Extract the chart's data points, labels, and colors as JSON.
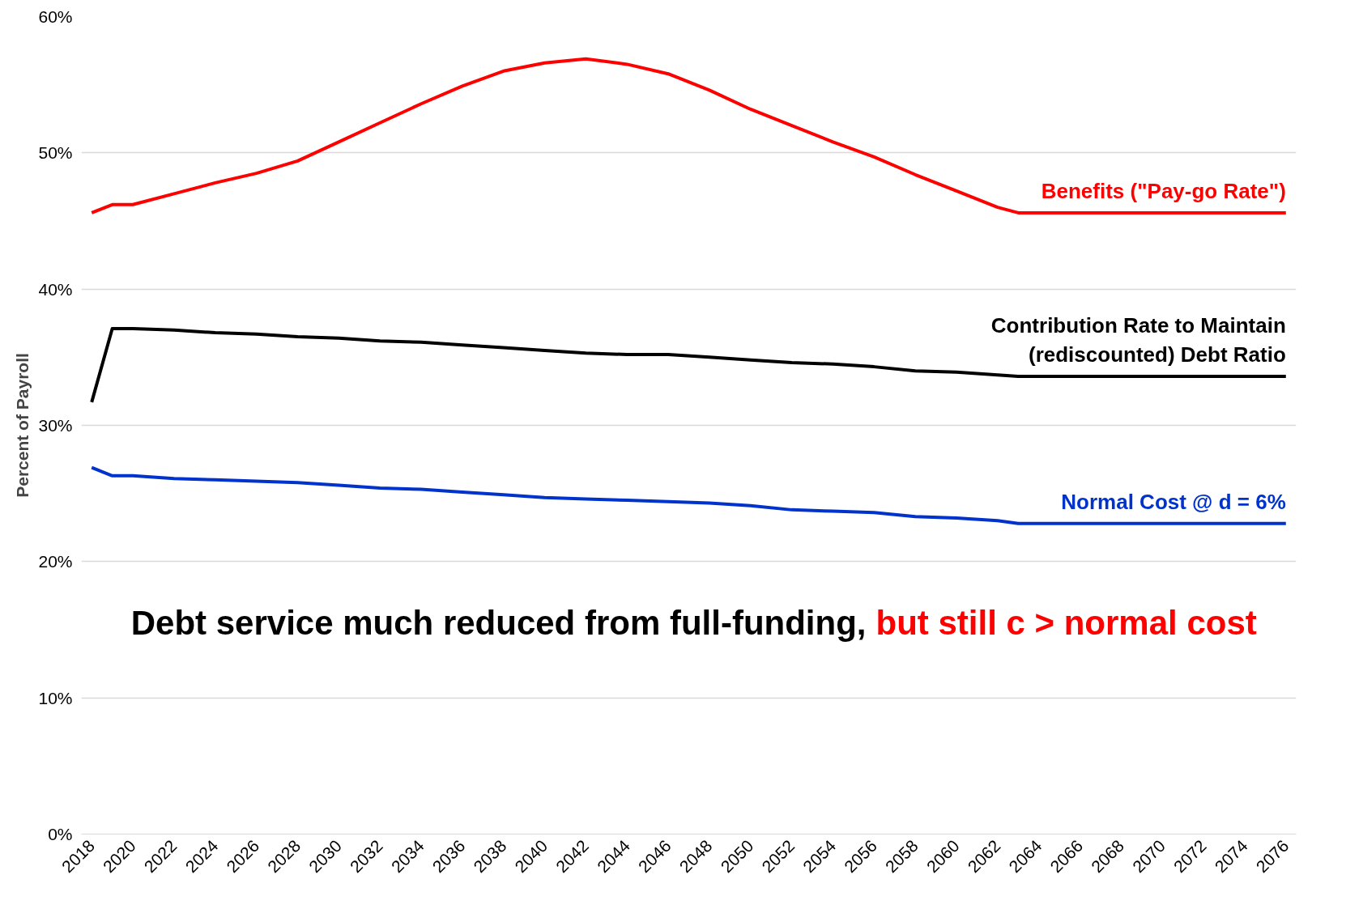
{
  "chart_data": {
    "type": "line",
    "ylabel": "Percent of Payroll",
    "x": [
      2018,
      2019,
      2020,
      2022,
      2024,
      2026,
      2028,
      2030,
      2032,
      2034,
      2036,
      2038,
      2040,
      2042,
      2044,
      2046,
      2048,
      2050,
      2052,
      2054,
      2056,
      2058,
      2060,
      2062,
      2063,
      2066,
      2070,
      2076
    ],
    "series": [
      {
        "name": "Benefits (\"Pay-go Rate\")",
        "color": "#ff0000",
        "values": [
          45.6,
          46.2,
          46.2,
          47.0,
          47.8,
          48.5,
          49.4,
          50.8,
          52.2,
          53.6,
          54.9,
          56.0,
          56.6,
          56.9,
          56.5,
          55.8,
          54.6,
          53.2,
          52.0,
          50.8,
          49.7,
          48.4,
          47.2,
          46.0,
          45.6,
          45.6,
          45.6,
          45.6
        ]
      },
      {
        "name": "Contribution Rate to Maintain (rediscounted) Debt Ratio",
        "color": "#000000",
        "values": [
          31.7,
          37.1,
          37.1,
          37.0,
          36.8,
          36.7,
          36.5,
          36.4,
          36.2,
          36.1,
          35.9,
          35.7,
          35.5,
          35.3,
          35.2,
          35.2,
          35.0,
          34.8,
          34.6,
          34.5,
          34.3,
          34.0,
          33.9,
          33.7,
          33.6,
          33.6,
          33.6,
          33.6
        ]
      },
      {
        "name": "Normal Cost @ d = 6%",
        "color": "#0033cc",
        "values": [
          26.9,
          26.3,
          26.3,
          26.1,
          26.0,
          25.9,
          25.8,
          25.6,
          25.4,
          25.3,
          25.1,
          24.9,
          24.7,
          24.6,
          24.5,
          24.4,
          24.3,
          24.1,
          23.8,
          23.7,
          23.6,
          23.3,
          23.2,
          23.0,
          22.8,
          22.8,
          22.8,
          22.8
        ]
      }
    ],
    "xlim": [
      2017.5,
      2076.5
    ],
    "xticks": [
      2018,
      2020,
      2022,
      2024,
      2026,
      2028,
      2030,
      2032,
      2034,
      2036,
      2038,
      2040,
      2042,
      2044,
      2046,
      2048,
      2050,
      2052,
      2054,
      2056,
      2058,
      2060,
      2062,
      2064,
      2066,
      2068,
      2070,
      2072,
      2074,
      2076
    ],
    "ylim": [
      0,
      60
    ],
    "yticks": [
      {
        "value": 0,
        "label": "0%"
      },
      {
        "value": 10,
        "label": "10%"
      },
      {
        "value": 20,
        "label": "20%"
      },
      {
        "value": 30,
        "label": "30%"
      },
      {
        "value": 40,
        "label": "40%"
      },
      {
        "value": 50,
        "label": "50%"
      },
      {
        "value": 60,
        "label": "60%"
      }
    ],
    "grid": "y",
    "legend": false,
    "marker": "none",
    "line_style": "solid",
    "annotations": [
      "Debt service much reduced from full-funding,",
      "but still c > normal cost"
    ]
  }
}
